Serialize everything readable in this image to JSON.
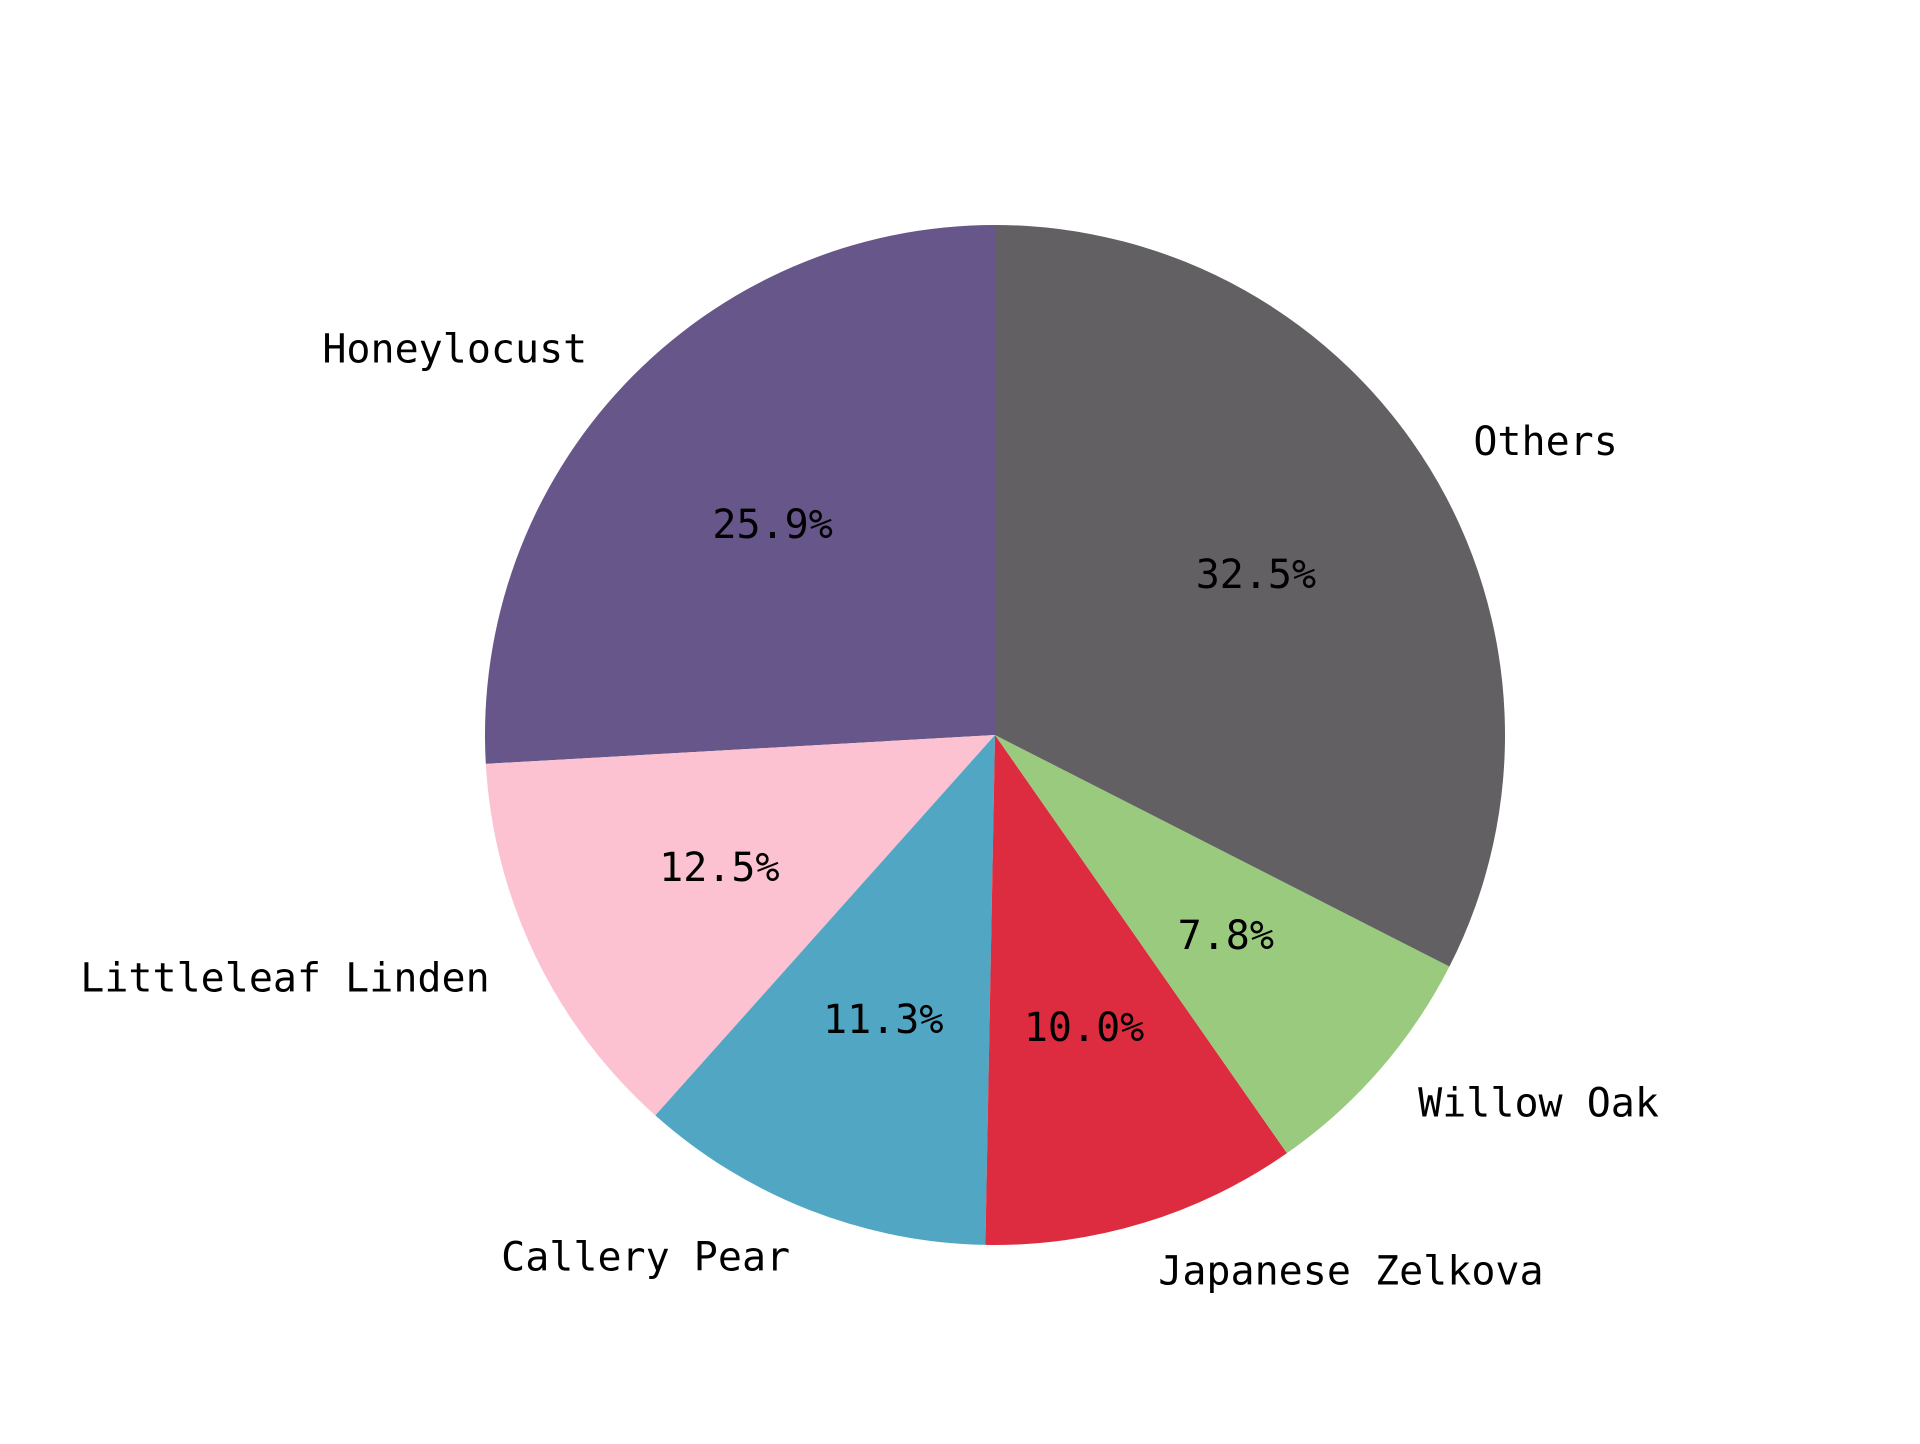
{
  "chart_data": {
    "type": "pie",
    "title": "",
    "start_angle_deg": 90,
    "direction": "counterclockwise",
    "slices": [
      {
        "label": "Honeylocust",
        "value": 25.9,
        "pct_label": "25.9%",
        "color": "#665689"
      },
      {
        "label": "Littleleaf Linden",
        "value": 12.5,
        "pct_label": "12.5%",
        "color": "#fcc2d1"
      },
      {
        "label": "Callery Pear",
        "value": 11.3,
        "pct_label": "11.3%",
        "color": "#51a7c3"
      },
      {
        "label": "Japanese Zelkova",
        "value": 10.0,
        "pct_label": "10.0%",
        "color": "#dd2c3f"
      },
      {
        "label": "Willow Oak",
        "value": 7.8,
        "pct_label": "7.8%",
        "color": "#9aca7e"
      },
      {
        "label": "Others",
        "value": 32.5,
        "pct_label": "32.5%",
        "color": "#626063"
      }
    ],
    "legend": "none"
  }
}
